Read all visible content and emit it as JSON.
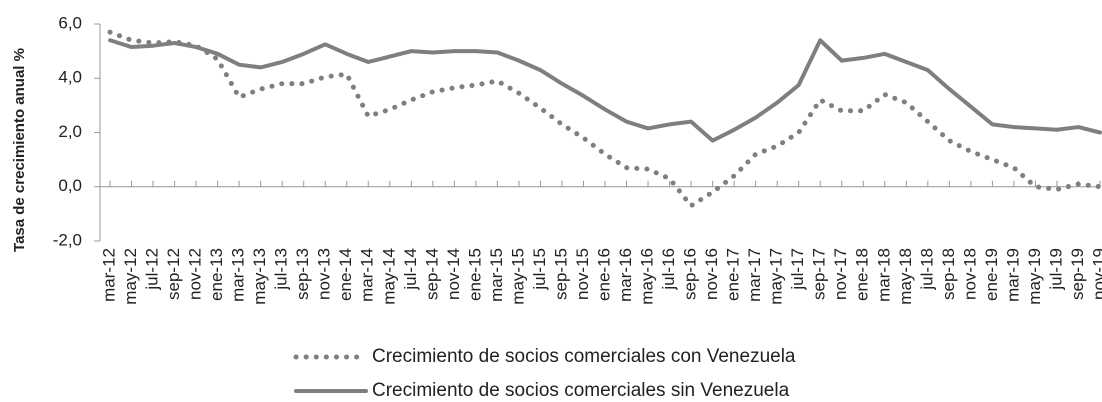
{
  "chart_data": {
    "type": "line",
    "y_label": "Tasa de crecimiento anual %",
    "categories": [
      "mar-12",
      "may-12",
      "jul-12",
      "sep-12",
      "nov-12",
      "ene-13",
      "mar-13",
      "may-13",
      "jul-13",
      "sep-13",
      "nov-13",
      "ene-14",
      "mar-14",
      "may-14",
      "jul-14",
      "sep-14",
      "nov-14",
      "ene-15",
      "mar-15",
      "may-15",
      "jul-15",
      "sep-15",
      "nov-15",
      "ene-16",
      "mar-16",
      "may-16",
      "jul-16",
      "sep-16",
      "nov-16",
      "ene-17",
      "mar-17",
      "may-17",
      "jul-17",
      "sep-17",
      "nov-17",
      "ene-18",
      "mar-18",
      "may-18",
      "jul-18",
      "sep-18",
      "nov-18",
      "ene-19",
      "mar-19",
      "may-19",
      "jul-19",
      "sep-19",
      "nov-19"
    ],
    "series": [
      {
        "name": "Crecimiento de socios comerciales con Venezuela",
        "color": "#7f7f7f",
        "dash": "dotted",
        "values": [
          5.7,
          5.4,
          5.3,
          5.35,
          5.2,
          4.7,
          3.3,
          3.6,
          3.8,
          3.8,
          4.05,
          4.15,
          2.6,
          2.85,
          3.2,
          3.5,
          3.65,
          3.75,
          3.9,
          3.45,
          2.9,
          2.3,
          1.8,
          1.2,
          0.7,
          0.65,
          0.3,
          -0.7,
          -0.2,
          0.4,
          1.2,
          1.5,
          2.0,
          3.2,
          2.8,
          2.8,
          3.4,
          3.1,
          2.4,
          1.7,
          1.3,
          1.0,
          0.7,
          0.0,
          -0.1,
          0.1,
          0.0
        ]
      },
      {
        "name": "Crecimiento de socios comerciales sin Venezuela",
        "color": "#7f7f7f",
        "dash": "solid",
        "values": [
          5.4,
          5.15,
          5.2,
          5.3,
          5.15,
          4.9,
          4.5,
          4.4,
          4.6,
          4.9,
          5.25,
          4.9,
          4.6,
          4.8,
          5.0,
          4.95,
          5.0,
          5.0,
          4.95,
          4.65,
          4.3,
          3.8,
          3.35,
          2.85,
          2.4,
          2.15,
          2.3,
          2.4,
          1.7,
          2.1,
          2.55,
          3.1,
          3.75,
          5.4,
          4.65,
          4.75,
          4.9,
          4.6,
          4.3,
          3.6,
          2.95,
          2.3,
          2.2,
          2.15,
          2.1,
          2.2,
          2.0
        ]
      }
    ],
    "ylim": [
      -2,
      6
    ],
    "yticks": [
      {
        "value": 6,
        "label": "6,0"
      },
      {
        "value": 4,
        "label": "4,0"
      },
      {
        "value": 2,
        "label": "2,0"
      },
      {
        "value": 0,
        "label": "0,0"
      },
      {
        "value": -2,
        "label": "-2,0"
      }
    ]
  }
}
